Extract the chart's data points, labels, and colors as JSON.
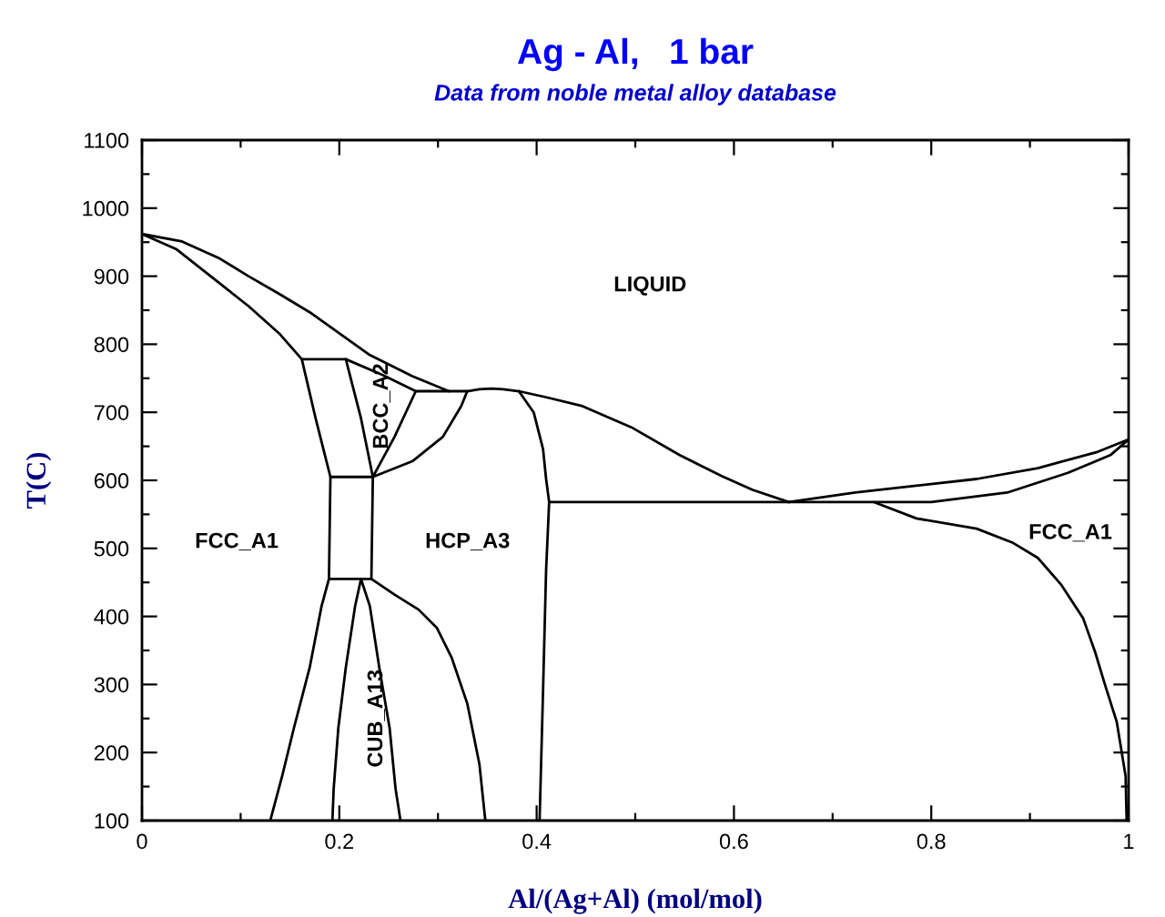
{
  "chart_data": {
    "type": "line",
    "title": "Ag - Al,   1 bar",
    "subtitle": "Data from noble metal alloy database",
    "xlabel": "Al/(Ag+Al) (mol/mol)",
    "ylabel": "T(C)",
    "xlim": [
      0,
      1
    ],
    "xticks": [
      0,
      0.2,
      0.4,
      0.6,
      0.8,
      1
    ],
    "ylim": [
      100,
      1100
    ],
    "yticks": [
      100,
      200,
      300,
      400,
      500,
      600,
      700,
      800,
      900,
      1000,
      1100
    ],
    "series": [
      {
        "color": "#000000",
        "x": [
          0,
          0.0406,
          0.0775,
          0.108,
          0.139,
          0.17,
          0.2,
          0.231,
          0.274,
          0.311
        ],
        "values": [
          962,
          951,
          927,
          900,
          874,
          847,
          816,
          784,
          753,
          731
        ]
      },
      {
        "color": "#000000",
        "x": [
          0,
          0.0345,
          0.0775,
          0.108,
          0.139,
          0.162
        ],
        "values": [
          962,
          940,
          891,
          856,
          816,
          778
        ]
      },
      {
        "color": "#000000",
        "x": [
          0.162,
          0.176,
          0.191,
          0.1895,
          0.182,
          0.17,
          0.154,
          0.142,
          0.13
        ],
        "values": [
          778,
          691,
          605,
          455,
          415,
          325,
          236,
          165,
          100
        ]
      },
      {
        "color": "#000000",
        "x": [
          0.162,
          0.2066,
          0.2435,
          0.2775,
          0.3297,
          0.342,
          0.354,
          0.366,
          0.382,
          0.41,
          0.4465,
          0.496,
          0.545,
          0.588,
          0.619,
          0.6556
        ],
        "values": [
          778,
          778,
          755,
          731,
          731,
          734,
          735,
          734,
          731,
          722,
          709,
          678,
          637,
          606,
          586,
          568
        ]
      },
      {
        "color": "#000000",
        "x": [
          0.6556,
          0.723,
          0.846,
          0.908,
          0.969,
          1
        ],
        "values": [
          568,
          582,
          602,
          618,
          642,
          660
        ]
      },
      {
        "color": "#000000",
        "x": [
          0.4127,
          0.8,
          0.877,
          0.9385,
          0.9815,
          1
        ],
        "values": [
          568,
          568,
          582,
          611,
          637,
          660
        ]
      },
      {
        "color": "#000000",
        "x": [
          0.742,
          0.785,
          0.846,
          0.883,
          0.908,
          0.932,
          0.954,
          0.966,
          0.976,
          0.988,
          0.997,
          0.998
        ],
        "values": [
          568,
          544,
          529,
          508,
          486,
          446,
          397,
          348,
          300,
          245,
          165,
          100
        ]
      },
      {
        "color": "#000000",
        "x": [
          0.382,
          0.397,
          0.4065,
          0.4096,
          0.4127,
          0.4096,
          0.4065,
          0.403
        ],
        "values": [
          731,
          700,
          646,
          602,
          568,
          468,
          290,
          100
        ]
      },
      {
        "color": "#000000",
        "x": [
          0.2066,
          0.222,
          0.234,
          0.2325,
          0.256,
          0.2804,
          0.299,
          0.314,
          0.3297,
          0.342,
          0.348
        ],
        "values": [
          778,
          691,
          605,
          455,
          432,
          410,
          383,
          339,
          272,
          183,
          100
        ]
      },
      {
        "color": "#000000",
        "x": [
          0.2775,
          0.256,
          0.234
        ],
        "values": [
          731,
          664,
          605
        ]
      },
      {
        "color": "#000000",
        "x": [
          0.191,
          0.234,
          0.274,
          0.305,
          0.3235,
          0.3297
        ],
        "values": [
          605,
          605,
          628,
          664,
          709,
          731
        ]
      },
      {
        "color": "#000000",
        "x": [
          0.1895,
          0.2325
        ],
        "values": [
          455,
          455
        ]
      },
      {
        "color": "#000000",
        "x": [
          0.222,
          0.216,
          0.2066,
          0.199,
          0.1943,
          0.193
        ],
        "values": [
          455,
          415,
          325,
          236,
          147,
          100
        ]
      },
      {
        "color": "#000000",
        "x": [
          0.222,
          0.231,
          0.2405,
          0.251,
          0.257,
          0.262
        ],
        "values": [
          455,
          415,
          325,
          236,
          147,
          100
        ]
      }
    ],
    "annotations": [
      "LIQUID",
      "FCC_A1",
      "BCC_A2",
      "HCP_A3",
      "CUB_A13",
      "FCC_A1"
    ]
  }
}
